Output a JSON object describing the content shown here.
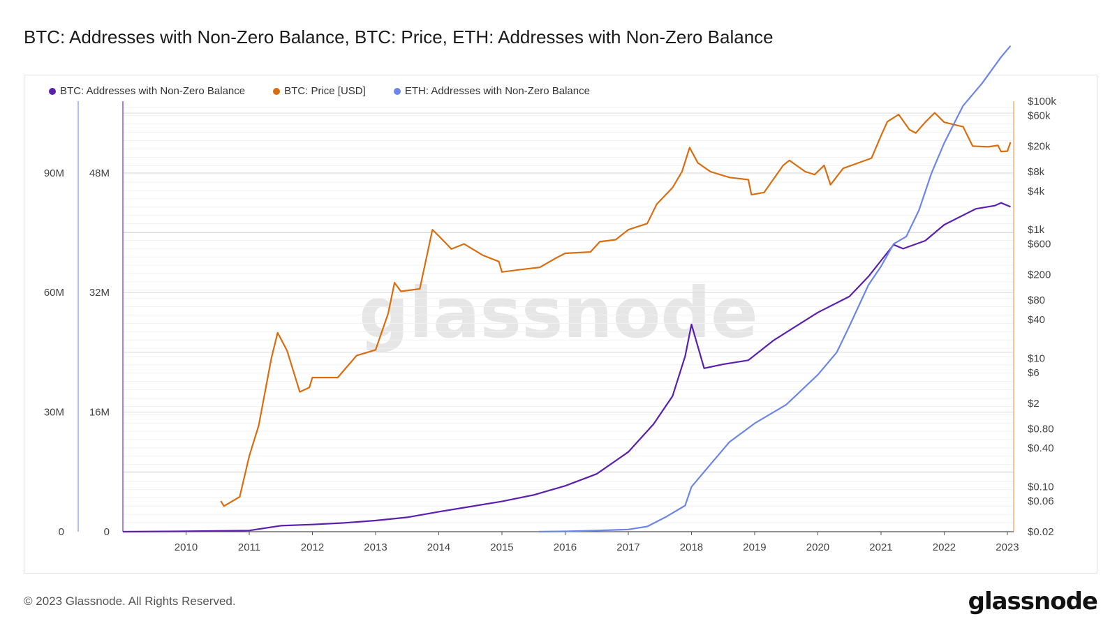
{
  "title": "BTC: Addresses with Non-Zero Balance, BTC: Price, ETH: Addresses with Non-Zero Balance",
  "footer": {
    "copyright": "© 2023 Glassnode. All Rights Reserved.",
    "logo": "glassnode"
  },
  "watermark": "glassnode",
  "colors": {
    "btc_addresses": "#5a1fae",
    "btc_price": "#d96d0f",
    "eth_addresses": "#6b86e8",
    "grid": "#e6e6e6"
  },
  "chart_data": {
    "type": "line",
    "title": "BTC: Addresses with Non-Zero Balance, BTC: Price, ETH: Addresses with Non-Zero Balance",
    "legend_placement": "top-left",
    "x_range": [
      2009.0,
      2023.1
    ],
    "x_ticks": [
      "2010",
      "2011",
      "2012",
      "2013",
      "2014",
      "2015",
      "2016",
      "2017",
      "2018",
      "2019",
      "2020",
      "2021",
      "2022",
      "2023"
    ],
    "axes": {
      "btc_addresses": {
        "position": "left-outer",
        "range": [
          0,
          108000000
        ],
        "ticks": [
          {
            "value": 0,
            "label": "0"
          },
          {
            "value": 30000000,
            "label": "30M"
          },
          {
            "value": 60000000,
            "label": "60M"
          },
          {
            "value": 90000000,
            "label": "90M"
          }
        ]
      },
      "eth_addresses": {
        "position": "left-inner",
        "range": [
          0,
          57600000
        ],
        "ticks": [
          {
            "value": 0,
            "label": "0"
          },
          {
            "value": 16000000,
            "label": "16M"
          },
          {
            "value": 32000000,
            "label": "32M"
          },
          {
            "value": 48000000,
            "label": "48M"
          }
        ]
      },
      "btc_price": {
        "position": "right",
        "scale": "log",
        "range": [
          0.02,
          100000
        ],
        "ticks": [
          {
            "value": 100000,
            "label": "$100k"
          },
          {
            "value": 60000,
            "label": "$60k"
          },
          {
            "value": 20000,
            "label": "$20k"
          },
          {
            "value": 8000,
            "label": "$8k"
          },
          {
            "value": 4000,
            "label": "$4k"
          },
          {
            "value": 1000,
            "label": "$1k"
          },
          {
            "value": 600,
            "label": "$600"
          },
          {
            "value": 200,
            "label": "$200"
          },
          {
            "value": 80,
            "label": "$80"
          },
          {
            "value": 40,
            "label": "$40"
          },
          {
            "value": 10,
            "label": "$10"
          },
          {
            "value": 6,
            "label": "$6"
          },
          {
            "value": 2,
            "label": "$2"
          },
          {
            "value": 0.8,
            "label": "$0.80"
          },
          {
            "value": 0.4,
            "label": "$0.40"
          },
          {
            "value": 0.1,
            "label": "$0.10"
          },
          {
            "value": 0.06,
            "label": "$0.06"
          },
          {
            "value": 0.02,
            "label": "$0.02"
          }
        ]
      }
    },
    "series": [
      {
        "name": "BTC: Addresses with Non-Zero Balance",
        "axis": "btc_addresses",
        "color": "#5a1fae",
        "points": [
          [
            2009.0,
            0
          ],
          [
            2010.0,
            100000
          ],
          [
            2011.0,
            300000
          ],
          [
            2011.5,
            1500000
          ],
          [
            2012.0,
            1800000
          ],
          [
            2012.5,
            2200000
          ],
          [
            2013.0,
            2800000
          ],
          [
            2013.5,
            3600000
          ],
          [
            2014.0,
            5000000
          ],
          [
            2014.5,
            6300000
          ],
          [
            2015.0,
            7600000
          ],
          [
            2015.5,
            9200000
          ],
          [
            2016.0,
            11500000
          ],
          [
            2016.5,
            14500000
          ],
          [
            2017.0,
            20000000
          ],
          [
            2017.4,
            27000000
          ],
          [
            2017.7,
            34000000
          ],
          [
            2017.9,
            44000000
          ],
          [
            2018.0,
            52000000
          ],
          [
            2018.2,
            41000000
          ],
          [
            2018.5,
            42000000
          ],
          [
            2018.9,
            43000000
          ],
          [
            2019.3,
            48000000
          ],
          [
            2019.7,
            52000000
          ],
          [
            2020.0,
            55000000
          ],
          [
            2020.5,
            59000000
          ],
          [
            2020.8,
            64000000
          ],
          [
            2021.0,
            68000000
          ],
          [
            2021.2,
            72000000
          ],
          [
            2021.35,
            71000000
          ],
          [
            2021.7,
            73000000
          ],
          [
            2022.0,
            77000000
          ],
          [
            2022.5,
            81000000
          ],
          [
            2022.8,
            81800000
          ],
          [
            2022.9,
            82500000
          ],
          [
            2023.05,
            81500000
          ]
        ]
      },
      {
        "name": "BTC: Price [USD]",
        "axis": "btc_price",
        "color": "#d96d0f",
        "points": [
          [
            2010.55,
            0.06
          ],
          [
            2010.6,
            0.05
          ],
          [
            2010.85,
            0.07
          ],
          [
            2011.0,
            0.3
          ],
          [
            2011.15,
            0.9
          ],
          [
            2011.35,
            10
          ],
          [
            2011.45,
            25
          ],
          [
            2011.6,
            13
          ],
          [
            2011.8,
            3
          ],
          [
            2011.95,
            3.5
          ],
          [
            2012.0,
            5
          ],
          [
            2012.4,
            5
          ],
          [
            2012.7,
            11
          ],
          [
            2013.0,
            13.5
          ],
          [
            2013.2,
            50
          ],
          [
            2013.3,
            150
          ],
          [
            2013.4,
            110
          ],
          [
            2013.7,
            120
          ],
          [
            2013.9,
            1000
          ],
          [
            2014.0,
            800
          ],
          [
            2014.2,
            500
          ],
          [
            2014.4,
            600
          ],
          [
            2014.7,
            400
          ],
          [
            2014.95,
            320
          ],
          [
            2015.0,
            220
          ],
          [
            2015.3,
            240
          ],
          [
            2015.6,
            260
          ],
          [
            2015.85,
            360
          ],
          [
            2016.0,
            430
          ],
          [
            2016.4,
            450
          ],
          [
            2016.55,
            650
          ],
          [
            2016.8,
            700
          ],
          [
            2017.0,
            1000
          ],
          [
            2017.3,
            1250
          ],
          [
            2017.45,
            2500
          ],
          [
            2017.7,
            4500
          ],
          [
            2017.85,
            8000
          ],
          [
            2017.97,
            19000
          ],
          [
            2018.1,
            11000
          ],
          [
            2018.3,
            8000
          ],
          [
            2018.6,
            6500
          ],
          [
            2018.9,
            6000
          ],
          [
            2018.95,
            3500
          ],
          [
            2019.15,
            3800
          ],
          [
            2019.45,
            10000
          ],
          [
            2019.55,
            12000
          ],
          [
            2019.8,
            8000
          ],
          [
            2019.95,
            7200
          ],
          [
            2020.1,
            10000
          ],
          [
            2020.2,
            5000
          ],
          [
            2020.4,
            9000
          ],
          [
            2020.7,
            11500
          ],
          [
            2020.85,
            13000
          ],
          [
            2021.0,
            29000
          ],
          [
            2021.1,
            48000
          ],
          [
            2021.28,
            62000
          ],
          [
            2021.45,
            36000
          ],
          [
            2021.55,
            32000
          ],
          [
            2021.7,
            47000
          ],
          [
            2021.85,
            66000
          ],
          [
            2022.0,
            47000
          ],
          [
            2022.3,
            40000
          ],
          [
            2022.45,
            20000
          ],
          [
            2022.7,
            19500
          ],
          [
            2022.85,
            20500
          ],
          [
            2022.9,
            16500
          ],
          [
            2023.0,
            16700
          ],
          [
            2023.05,
            23000
          ]
        ]
      },
      {
        "name": "ETH: Addresses with Non-Zero Balance",
        "axis": "eth_addresses",
        "color": "#6b86e8",
        "points": [
          [
            2015.58,
            0
          ],
          [
            2016.0,
            50000
          ],
          [
            2016.5,
            150000
          ],
          [
            2017.0,
            300000
          ],
          [
            2017.3,
            700000
          ],
          [
            2017.6,
            2000000
          ],
          [
            2017.9,
            3500000
          ],
          [
            2018.0,
            6000000
          ],
          [
            2018.3,
            9000000
          ],
          [
            2018.6,
            12000000
          ],
          [
            2019.0,
            14500000
          ],
          [
            2019.5,
            17000000
          ],
          [
            2020.0,
            21000000
          ],
          [
            2020.3,
            24000000
          ],
          [
            2020.5,
            27500000
          ],
          [
            2020.8,
            33000000
          ],
          [
            2021.0,
            35500000
          ],
          [
            2021.2,
            38500000
          ],
          [
            2021.4,
            39500000
          ],
          [
            2021.6,
            43000000
          ],
          [
            2021.8,
            48000000
          ],
          [
            2022.0,
            52000000
          ],
          [
            2022.3,
            57000000
          ],
          [
            2022.6,
            60000000
          ],
          [
            2022.9,
            63500000
          ],
          [
            2023.05,
            65000000
          ]
        ]
      }
    ]
  }
}
